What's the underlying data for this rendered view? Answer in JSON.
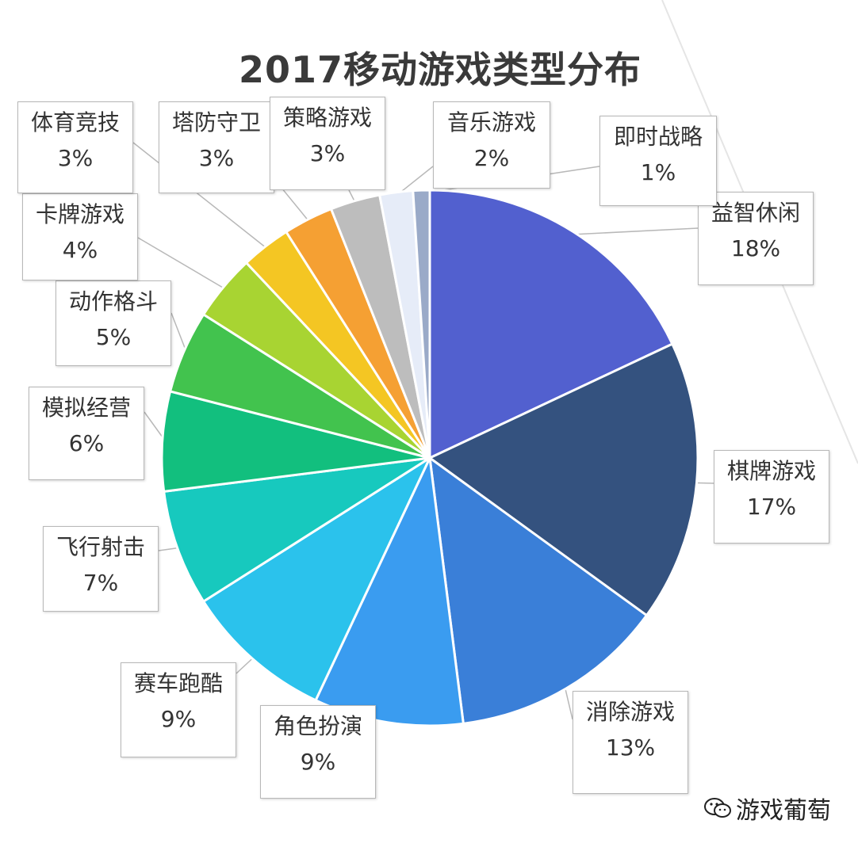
{
  "chart_data": {
    "type": "pie",
    "title": "2017移动游戏类型分布",
    "start_angle_deg": 0,
    "direction": "clockwise",
    "slices": [
      {
        "label": "益智休闲",
        "value": 18,
        "value_label": "18%",
        "color": "#5260cf"
      },
      {
        "label": "棋牌游戏",
        "value": 17,
        "value_label": "17%",
        "color": "#34527f"
      },
      {
        "label": "消除游戏",
        "value": 13,
        "value_label": "13%",
        "color": "#3a7fd8"
      },
      {
        "label": "角色扮演",
        "value": 9,
        "value_label": "9%",
        "color": "#3a9cf0"
      },
      {
        "label": "赛车跑酷",
        "value": 9,
        "value_label": "9%",
        "color": "#2bc2ec"
      },
      {
        "label": "飞行射击",
        "value": 7,
        "value_label": "7%",
        "color": "#17c9be"
      },
      {
        "label": "模拟经营",
        "value": 6,
        "value_label": "6%",
        "color": "#12bf7e"
      },
      {
        "label": "动作格斗",
        "value": 5,
        "value_label": "5%",
        "color": "#42c34e"
      },
      {
        "label": "卡牌游戏",
        "value": 4,
        "value_label": "4%",
        "color": "#a8d432"
      },
      {
        "label": "体育竞技",
        "value": 3,
        "value_label": "3%",
        "color": "#f4c623"
      },
      {
        "label": "塔防守卫",
        "value": 3,
        "value_label": "3%",
        "color": "#f5a033"
      },
      {
        "label": "策略游戏",
        "value": 3,
        "value_label": "3%",
        "color": "#bdbdbd"
      },
      {
        "label": "音乐游戏",
        "value": 2,
        "value_label": "2%",
        "color": "#e6ecf8"
      },
      {
        "label": "即时战略",
        "value": 1,
        "value_label": "1%",
        "color": "#9aaac8"
      }
    ]
  },
  "footer": {
    "text": "游戏葡萄",
    "icon": "wechat-icon"
  }
}
